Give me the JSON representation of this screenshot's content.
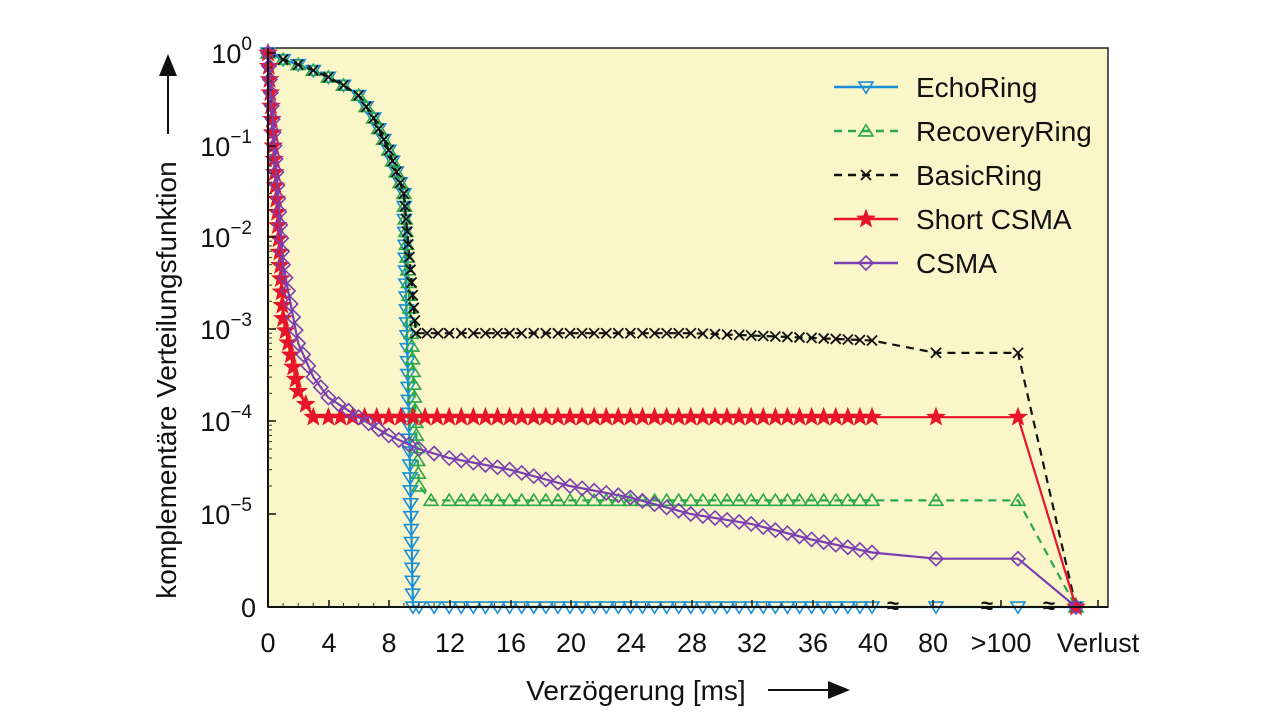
{
  "chart_data": {
    "type": "line",
    "xlabel": "Verzögerung [ms]",
    "ylabel": "komplementäre Verteilungsfunktion",
    "x_tick_labels": [
      "0",
      "4",
      "8",
      "12",
      "16",
      "20",
      "24",
      "28",
      "32",
      "36",
      "40",
      "80",
      ">100",
      "Verlust"
    ],
    "y_tick_labels": [
      {
        "base": "10",
        "exp": "0"
      },
      {
        "base": "10",
        "exp": "−1"
      },
      {
        "base": "10",
        "exp": "−2"
      },
      {
        "base": "10",
        "exp": "−3"
      },
      {
        "base": "10",
        "exp": "−4"
      },
      {
        "base": "10",
        "exp": "−5"
      },
      {
        "base": "0",
        "exp": ""
      }
    ],
    "y_scale": "log",
    "background_color": "#fbf6c9",
    "axis_break_mark": "≈",
    "legend_position": "top-right",
    "series": [
      {
        "name": "EchoRing",
        "color": "#1a8fd8",
        "marker": "triangle-down",
        "dash": "solid",
        "points": [
          [
            0,
            1
          ],
          [
            1,
            0.85
          ],
          [
            2,
            0.75
          ],
          [
            3,
            0.65
          ],
          [
            4,
            0.55
          ],
          [
            5,
            0.45
          ],
          [
            6,
            0.35
          ],
          [
            7,
            0.2
          ],
          [
            8,
            0.09
          ],
          [
            9,
            0.03
          ],
          [
            9.6,
            0
          ],
          [
            10,
            0
          ],
          [
            12,
            0
          ],
          [
            16,
            0
          ],
          [
            20,
            0
          ],
          [
            24,
            0
          ],
          [
            28,
            0
          ],
          [
            32,
            0
          ],
          [
            36,
            0
          ],
          [
            40,
            0
          ],
          [
            "80",
            0
          ],
          [
            ">100",
            0
          ],
          [
            "Verlust",
            0
          ]
        ]
      },
      {
        "name": "RecoveryRing",
        "color": "#2aa84a",
        "marker": "triangle-up",
        "dash": "dashed",
        "points": [
          [
            0,
            1
          ],
          [
            1,
            0.85
          ],
          [
            2,
            0.75
          ],
          [
            3,
            0.65
          ],
          [
            4,
            0.55
          ],
          [
            5,
            0.45
          ],
          [
            6,
            0.35
          ],
          [
            7,
            0.2
          ],
          [
            8,
            0.09
          ],
          [
            9,
            0.03
          ],
          [
            10,
            2e-05
          ],
          [
            10.8,
            1.4e-05
          ],
          [
            12,
            1.4e-05
          ],
          [
            16,
            1.4e-05
          ],
          [
            20,
            1.4e-05
          ],
          [
            24,
            1.4e-05
          ],
          [
            28,
            1.4e-05
          ],
          [
            32,
            1.4e-05
          ],
          [
            36,
            1.4e-05
          ],
          [
            40,
            1.4e-05
          ],
          [
            "80",
            1.4e-05
          ],
          [
            ">100",
            1.4e-05
          ],
          [
            "Verlust",
            0
          ]
        ]
      },
      {
        "name": "BasicRing",
        "color": "#111111",
        "marker": "x",
        "dash": "dashed",
        "points": [
          [
            0,
            1
          ],
          [
            1,
            0.85
          ],
          [
            2,
            0.75
          ],
          [
            3,
            0.65
          ],
          [
            4,
            0.55
          ],
          [
            5,
            0.45
          ],
          [
            6,
            0.35
          ],
          [
            7,
            0.2
          ],
          [
            8,
            0.09
          ],
          [
            9,
            0.03
          ],
          [
            9.8,
            0.0009
          ],
          [
            12,
            0.0009
          ],
          [
            16,
            0.0009
          ],
          [
            20,
            0.0009
          ],
          [
            24,
            0.0009
          ],
          [
            28,
            0.0009
          ],
          [
            32,
            0.00085
          ],
          [
            36,
            0.0008
          ],
          [
            40,
            0.00075
          ],
          [
            "80",
            0.00055
          ],
          [
            ">100",
            0.00055
          ],
          [
            "Verlust",
            0
          ]
        ]
      },
      {
        "name": "Short CSMA",
        "color": "#e8142a",
        "marker": "star",
        "dash": "solid",
        "points": [
          [
            0,
            1
          ],
          [
            1,
            0.0013
          ],
          [
            2,
            0.00021
          ],
          [
            3,
            0.00011
          ],
          [
            4,
            0.00011
          ],
          [
            8,
            0.00011
          ],
          [
            12,
            0.00011
          ],
          [
            16,
            0.00011
          ],
          [
            20,
            0.00011
          ],
          [
            24,
            0.00011
          ],
          [
            28,
            0.00011
          ],
          [
            32,
            0.00011
          ],
          [
            36,
            0.00011
          ],
          [
            40,
            0.00011
          ],
          [
            "80",
            0.00011
          ],
          [
            ">100",
            0.00011
          ],
          [
            "Verlust",
            0
          ]
        ]
      },
      {
        "name": "CSMA",
        "color": "#7a3fb0",
        "marker": "diamond",
        "dash": "solid",
        "points": [
          [
            0,
            1
          ],
          [
            1,
            0.005
          ],
          [
            2,
            0.0007
          ],
          [
            3,
            0.0003
          ],
          [
            4,
            0.00018
          ],
          [
            6,
            0.00011
          ],
          [
            8,
            7e-05
          ],
          [
            10,
            5e-05
          ],
          [
            12,
            4e-05
          ],
          [
            16,
            3e-05
          ],
          [
            20,
            2e-05
          ],
          [
            24,
            1.5e-05
          ],
          [
            28,
            1e-05
          ],
          [
            32,
            7e-06
          ],
          [
            36,
            4e-06
          ],
          [
            40,
            2.5e-06
          ],
          [
            "80",
            2e-06
          ],
          [
            ">100",
            2e-06
          ],
          [
            "Verlust",
            0
          ]
        ]
      }
    ]
  }
}
